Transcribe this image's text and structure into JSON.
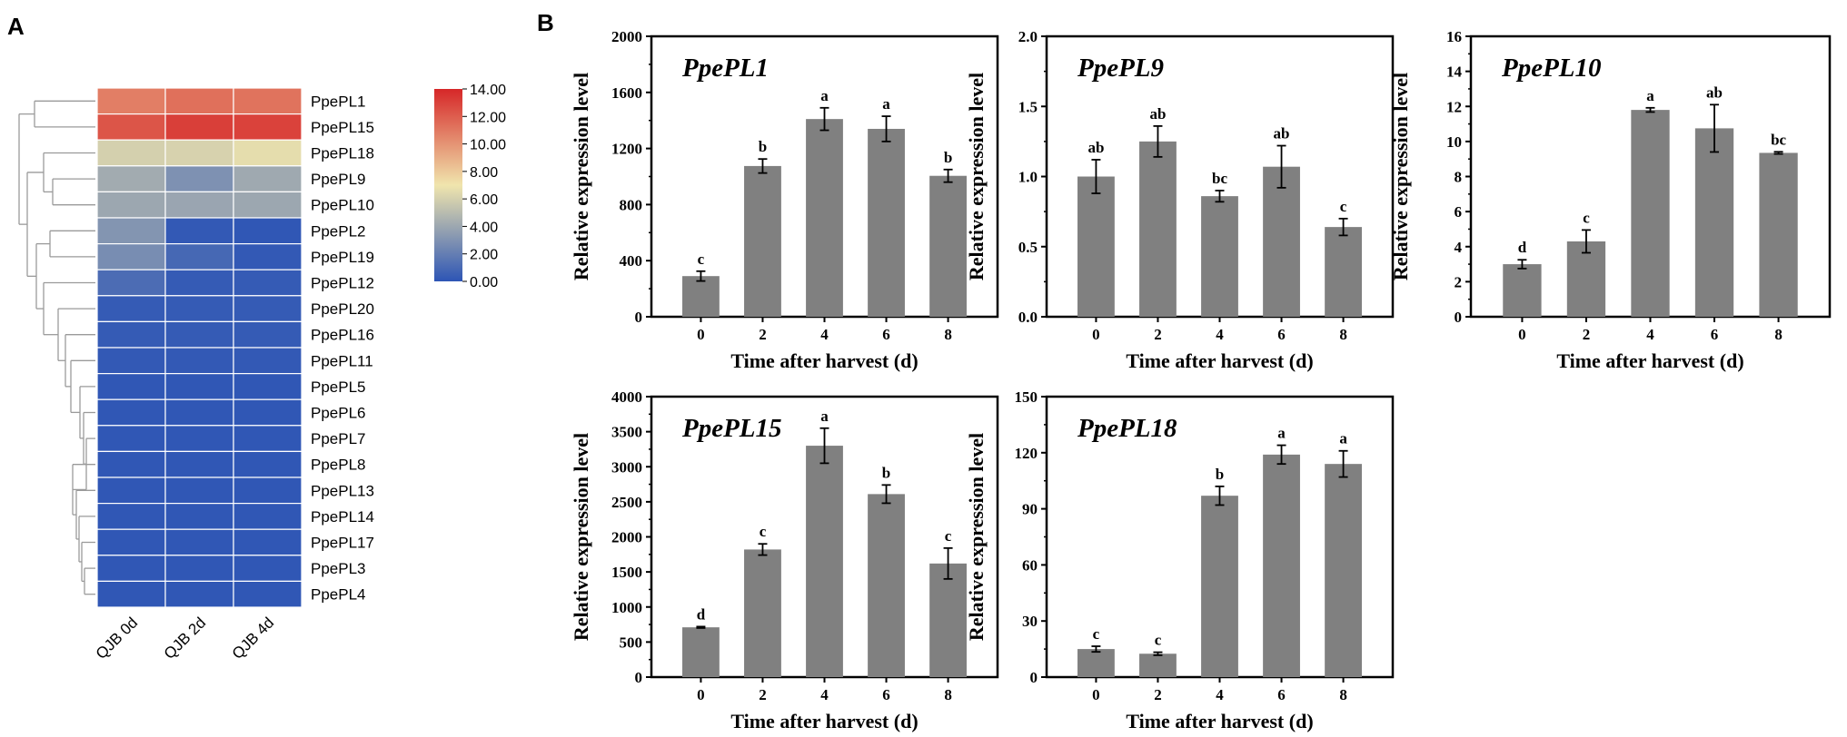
{
  "panel_labels": {
    "a": "A",
    "b": "B"
  },
  "heatmap": {
    "columns": [
      "QJB 0d",
      "QJB 2d",
      "QJB 4d"
    ],
    "rows": [
      "PpePL1",
      "PpePL15",
      "PpePL18",
      "PpePL9",
      "PpePL10",
      "PpePL2",
      "PpePL19",
      "PpePL12",
      "PpePL20",
      "PpePL16",
      "PpePL11",
      "PpePL5",
      "PpePL6",
      "PpePL7",
      "PpePL8",
      "PpePL13",
      "PpePL14",
      "PpePL17",
      "PpePL3",
      "PpePL4"
    ],
    "values": [
      [
        10.8,
        11.3,
        11.2
      ],
      [
        12.3,
        13.1,
        13.0
      ],
      [
        6.0,
        6.1,
        6.6
      ],
      [
        4.2,
        2.9,
        4.1
      ],
      [
        4.0,
        3.9,
        4.0
      ],
      [
        3.1,
        0.2,
        0.1
      ],
      [
        2.7,
        0.9,
        0.2
      ],
      [
        1.1,
        0.3,
        0.3
      ],
      [
        0.3,
        0.3,
        0.3
      ],
      [
        0.3,
        0.3,
        0.3
      ],
      [
        0.2,
        0.2,
        0.2
      ],
      [
        0.1,
        0.1,
        0.1
      ],
      [
        0.1,
        0.1,
        0.1
      ],
      [
        0.1,
        0.1,
        0.1
      ],
      [
        0.1,
        0.1,
        0.1
      ],
      [
        0.1,
        0.1,
        0.1
      ],
      [
        0.1,
        0.1,
        0.1
      ],
      [
        0.1,
        0.1,
        0.1
      ],
      [
        0.1,
        0.1,
        0.1
      ],
      [
        0.1,
        0.1,
        0.1
      ]
    ],
    "colorbar": {
      "min": 0,
      "max": 14,
      "tick_labels": [
        "14.00",
        "12.00",
        "10.00",
        "8.00",
        "6.00",
        "4.00",
        "2.00",
        "0.00"
      ],
      "colors": [
        "#2d55b5",
        "#f0e5ad",
        "#d62728"
      ]
    }
  },
  "chart_data": [
    {
      "type": "bar",
      "title": "PpePL1",
      "xlabel": "Time after harvest (d)",
      "ylabel": "Relative expression level",
      "categories": [
        "0",
        "2",
        "4",
        "6",
        "8"
      ],
      "values": [
        290,
        1075,
        1410,
        1340,
        1005
      ],
      "errors": [
        35,
        50,
        80,
        90,
        45
      ],
      "letters": [
        "c",
        "b",
        "a",
        "a",
        "b"
      ],
      "ylim": [
        0,
        2000
      ],
      "yticks": [
        "0",
        "400",
        "800",
        "1200",
        "1600",
        "2000"
      ],
      "bar_color": "#808080"
    },
    {
      "type": "bar",
      "title": "PpePL9",
      "xlabel": "Time after harvest (d)",
      "ylabel": "Relative expression level",
      "categories": [
        "0",
        "2",
        "4",
        "6",
        "8"
      ],
      "values": [
        1.0,
        1.25,
        0.86,
        1.07,
        0.64
      ],
      "errors": [
        0.12,
        0.11,
        0.04,
        0.15,
        0.06
      ],
      "letters": [
        "ab",
        "ab",
        "bc",
        "ab",
        "c"
      ],
      "ylim": [
        0,
        2.0
      ],
      "yticks": [
        "0.0",
        "0.5",
        "1.0",
        "1.5",
        "2.0"
      ],
      "bar_color": "#808080"
    },
    {
      "type": "bar",
      "title": "PpePL10",
      "xlabel": "Time after harvest (d)",
      "ylabel": "Relative expression level",
      "categories": [
        "0",
        "2",
        "4",
        "6",
        "8"
      ],
      "values": [
        3.0,
        4.3,
        11.8,
        10.75,
        9.35
      ],
      "errors": [
        0.25,
        0.65,
        0.12,
        1.35,
        0.06
      ],
      "letters": [
        "d",
        "c",
        "a",
        "ab",
        "bc"
      ],
      "ylim": [
        0,
        16
      ],
      "yticks": [
        "0",
        "2",
        "4",
        "6",
        "8",
        "10",
        "12",
        "14",
        "16"
      ],
      "bar_color": "#808080"
    },
    {
      "type": "bar",
      "title": "PpePL15",
      "xlabel": "Time after harvest (d)",
      "ylabel": "Relative expression level",
      "categories": [
        "0",
        "2",
        "4",
        "6",
        "8"
      ],
      "values": [
        710,
        1820,
        3300,
        2610,
        1620
      ],
      "errors": [
        10,
        80,
        250,
        130,
        220
      ],
      "letters": [
        "d",
        "c",
        "a",
        "b",
        "c"
      ],
      "ylim": [
        0,
        4000
      ],
      "yticks": [
        "0",
        "500",
        "1000",
        "1500",
        "2000",
        "2500",
        "3000",
        "3500",
        "4000"
      ],
      "bar_color": "#808080"
    },
    {
      "type": "bar",
      "title": "PpePL18",
      "xlabel": "Time after harvest (d)",
      "ylabel": "Relative expression level",
      "categories": [
        "0",
        "2",
        "4",
        "6",
        "8"
      ],
      "values": [
        15,
        12.5,
        97,
        119,
        114
      ],
      "errors": [
        1.5,
        0.8,
        5,
        5,
        7
      ],
      "letters": [
        "c",
        "c",
        "b",
        "a",
        "a"
      ],
      "ylim": [
        0,
        150
      ],
      "yticks": [
        "0",
        "30",
        "60",
        "90",
        "120",
        "150"
      ],
      "bar_color": "#808080"
    }
  ]
}
